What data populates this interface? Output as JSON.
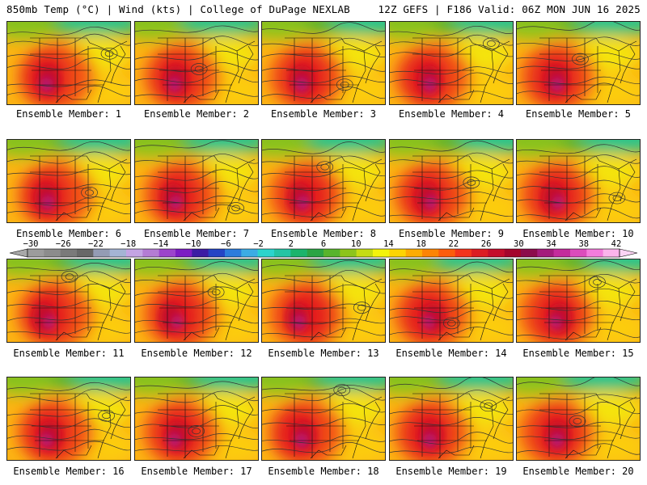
{
  "header": {
    "left": "850mb Temp (°C) | Wind (kts) | College of DuPage NEXLAB",
    "right": "12Z GEFS | F186 Valid: 06Z MON JUN 16 2025"
  },
  "panels": [
    {
      "label": "Ensemble Member: 1"
    },
    {
      "label": "Ensemble Member: 2"
    },
    {
      "label": "Ensemble Member: 3"
    },
    {
      "label": "Ensemble Member: 4"
    },
    {
      "label": "Ensemble Member: 5"
    },
    {
      "label": "Ensemble Member: 6"
    },
    {
      "label": "Ensemble Member: 7"
    },
    {
      "label": "Ensemble Member: 8"
    },
    {
      "label": "Ensemble Member: 9"
    },
    {
      "label": "Ensemble Member: 10"
    },
    {
      "label": "Ensemble Member: 11"
    },
    {
      "label": "Ensemble Member: 12"
    },
    {
      "label": "Ensemble Member: 13"
    },
    {
      "label": "Ensemble Member: 14"
    },
    {
      "label": "Ensemble Member: 15"
    },
    {
      "label": "Ensemble Member: 16"
    },
    {
      "label": "Ensemble Member: 17"
    },
    {
      "label": "Ensemble Member: 18"
    },
    {
      "label": "Ensemble Member: 19"
    },
    {
      "label": "Ensemble Member: 20"
    }
  ],
  "colorbar": {
    "ticks": [
      "-30",
      "-26",
      "-22",
      "-18",
      "-14",
      "-10",
      "-6",
      "-2",
      "2",
      "6",
      "10",
      "14",
      "18",
      "22",
      "26",
      "30",
      "34",
      "38",
      "42"
    ],
    "colors": [
      "#9c9c9c",
      "#8c8c8c",
      "#7a7a7a",
      "#686868",
      "#949cb4",
      "#a4b4d4",
      "#c4a4e4",
      "#b47cd4",
      "#9c44cc",
      "#7c1cc4",
      "#3c1ca4",
      "#2444c4",
      "#2c7cdc",
      "#3cace4",
      "#2cd4cc",
      "#24c4a4",
      "#1cb46c",
      "#2ca444",
      "#58b42c",
      "#8cc41c",
      "#c4dc14",
      "#f4f40c",
      "#fcd404",
      "#fcac04",
      "#fc8404",
      "#fc5c0c",
      "#f4341c",
      "#dc1c24",
      "#c40c2c",
      "#a4042c",
      "#8c0c4c",
      "#a41c7c",
      "#c42c9c",
      "#dc4cbc",
      "#f47cdc",
      "#fcb4ec"
    ],
    "legend_colors": {
      "cold": "#2444c4",
      "mild": "#24c4a4",
      "warm": "#fcac04",
      "hot": "#dc1c24"
    }
  }
}
